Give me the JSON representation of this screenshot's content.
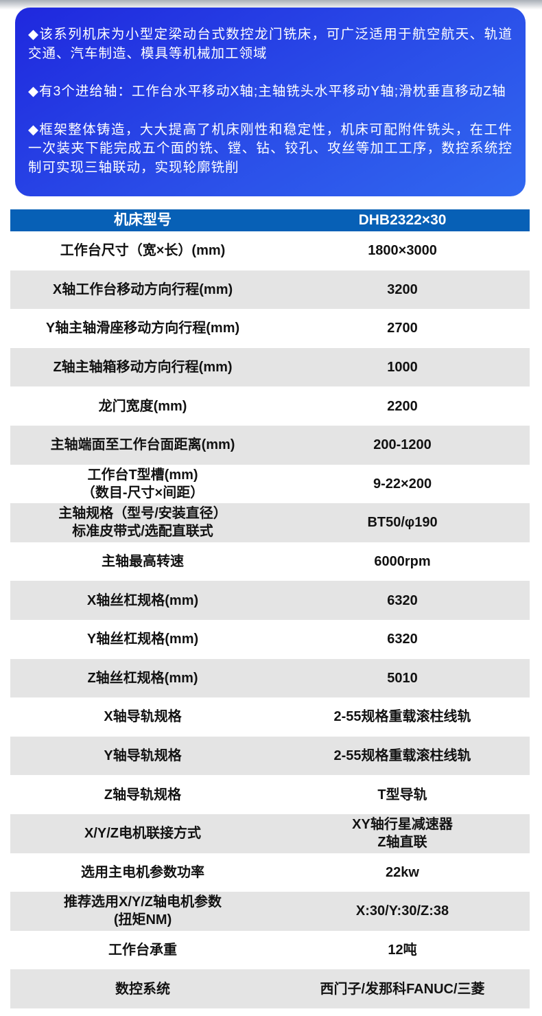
{
  "page": {
    "top_shade_color": "#a9afb7"
  },
  "hero": {
    "gradient_start": "#1f28de",
    "gradient_end": "#3168f0",
    "bullets": [
      "◆该系列机床为小型定梁动台式数控龙门铣床，可广泛适用于航空航天、轨道交通、汽车制造、模具等机械加工领域",
      "◆有3个进给轴：工作台水平移动X轴;主轴铣头水平移动Y轴;滑枕垂直移动Z轴",
      "◆框架整体铸造，大大提高了机床刚性和稳定性，机床可配附件铣头，在工件一次装夹下能完成五个面的铣、镗、钻、铰孔、攻丝等加工工序，数控系统控制可实现三轴联动，实现轮廓铣削"
    ]
  },
  "table": {
    "header": {
      "bg": "#0760b6",
      "model_label": "机床型号",
      "model_value": "DHB2322×30"
    },
    "row_alt_bg": "#e4e4e4",
    "rows": [
      {
        "label": [
          "工作台尺寸（宽×长）(mm)"
        ],
        "value": [
          "1800×3000"
        ]
      },
      {
        "label": [
          "X轴工作台移动方向行程(mm)"
        ],
        "value": [
          "3200"
        ]
      },
      {
        "label": [
          "Y轴主轴滑座移动方向行程(mm)"
        ],
        "value": [
          "2700"
        ]
      },
      {
        "label": [
          "Z轴主轴箱移动方向行程(mm)"
        ],
        "value": [
          "1000"
        ]
      },
      {
        "label": [
          "龙门宽度(mm)"
        ],
        "value": [
          "2200"
        ]
      },
      {
        "label": [
          "主轴端面至工作台面距离(mm)"
        ],
        "value": [
          "200-1200"
        ]
      },
      {
        "label": [
          "工作台T型槽(mm)",
          "（数目-尺寸×间距）"
        ],
        "value": [
          "9-22×200"
        ]
      },
      {
        "label": [
          "主轴规格（型号/安装直径）",
          "标准皮带式/选配直联式"
        ],
        "value": [
          "BT50/φ190"
        ]
      },
      {
        "label": [
          "主轴最高转速"
        ],
        "value": [
          "6000rpm"
        ]
      },
      {
        "label": [
          "X轴丝杠规格(mm)"
        ],
        "value": [
          "6320"
        ]
      },
      {
        "label": [
          "Y轴丝杠规格(mm)"
        ],
        "value": [
          "6320"
        ]
      },
      {
        "label": [
          "Z轴丝杠规格(mm)"
        ],
        "value": [
          "5010"
        ]
      },
      {
        "label": [
          "X轴导轨规格"
        ],
        "value": [
          "2-55规格重载滚柱线轨"
        ]
      },
      {
        "label": [
          "Y轴导轨规格"
        ],
        "value": [
          "2-55规格重载滚柱线轨"
        ]
      },
      {
        "label": [
          "Z轴导轨规格"
        ],
        "value": [
          "T型导轨"
        ]
      },
      {
        "label": [
          "X/Y/Z电机联接方式"
        ],
        "value": [
          "XY轴行星减速器",
          "Z轴直联"
        ]
      },
      {
        "label": [
          "选用主电机参数功率"
        ],
        "value": [
          "22kw"
        ]
      },
      {
        "label": [
          "推荐选用X/Y/Z轴电机参数",
          "(扭矩NM)"
        ],
        "value": [
          "X:30/Y:30/Z:38"
        ]
      },
      {
        "label": [
          "工作台承重"
        ],
        "value": [
          "12吨"
        ]
      },
      {
        "label": [
          "数控系统"
        ],
        "value": [
          "西门子/发那科FANUC/三菱"
        ]
      }
    ]
  }
}
